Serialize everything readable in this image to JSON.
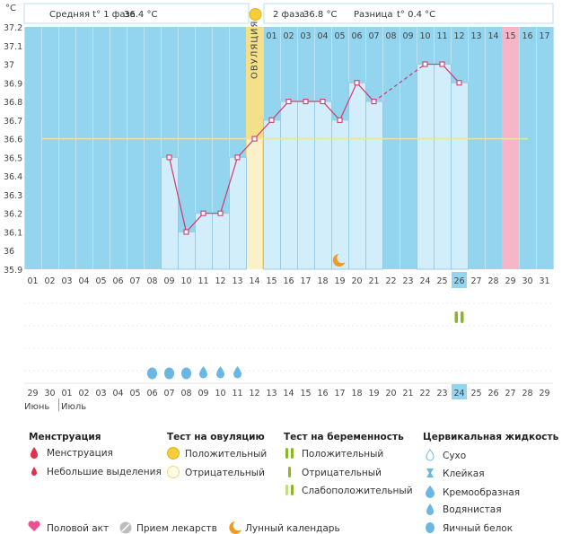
{
  "chart_data": {
    "type": "line",
    "unit": "°C",
    "y_ticks": [
      "37.2",
      "37.1",
      "37",
      "36.9",
      "36.8",
      "36.7",
      "36.6",
      "36.5",
      "36.4",
      "36.3",
      "36.2",
      "36.1",
      "36",
      "35.9"
    ],
    "ylim": [
      35.9,
      37.2
    ],
    "phase1_label": "Средняя t° 1 фаза",
    "phase1_value": "36.4 °C",
    "phase2_label": "2 фаза",
    "phase2_value": "36.8 °C",
    "diff_label": "Разница",
    "diff_value": "t° 0.4 °C",
    "ovulation_label": "ОВУЛЯЦИЯ",
    "ovulation_index": 13,
    "cycle_day_labels": [
      "01",
      "02",
      "03",
      "04",
      "05",
      "06",
      "07",
      "08",
      "09",
      "10",
      "11",
      "12",
      "13",
      "14",
      "15",
      "16",
      "17",
      "18",
      "19",
      "20",
      "21",
      "22",
      "23",
      "24",
      "25",
      "26",
      "27",
      "28",
      "29",
      "30",
      "31"
    ],
    "post_ovulation_day_labels": [
      "01",
      "02",
      "03",
      "04",
      "05",
      "06",
      "07",
      "08",
      "09",
      "10",
      "11",
      "12",
      "13",
      "14",
      "15",
      "16",
      "17"
    ],
    "coverline": 36.6,
    "temperatures": [
      null,
      null,
      null,
      null,
      null,
      null,
      null,
      null,
      36.5,
      36.1,
      36.2,
      36.2,
      36.5,
      36.6,
      36.7,
      36.8,
      36.8,
      36.8,
      36.7,
      36.9,
      36.8,
      null,
      null,
      37.0,
      37.0,
      36.9,
      null,
      null,
      null,
      null,
      null
    ],
    "interpolated_segments": [
      [
        20,
        23
      ]
    ],
    "highlight_cycle_day_index": 25,
    "pink_day_index": 28,
    "calendar_dates": [
      "29",
      "30",
      "01",
      "02",
      "03",
      "04",
      "05",
      "06",
      "07",
      "08",
      "09",
      "10",
      "11",
      "12",
      "13",
      "14",
      "15",
      "16",
      "17",
      "18",
      "19",
      "20",
      "21",
      "22",
      "23",
      "24",
      "25",
      "26",
      "27",
      "28",
      "29"
    ],
    "red_date_indices": [
      3,
      4,
      9,
      10,
      16,
      17,
      23
    ],
    "highlight_date_index": 25,
    "month_labels": [
      "Июнь",
      "Июль"
    ],
    "moon_index": 18,
    "fluid_markers": [
      {
        "index": 7,
        "kind": "egg-white"
      },
      {
        "index": 8,
        "kind": "egg-white"
      },
      {
        "index": 9,
        "kind": "egg-white"
      },
      {
        "index": 10,
        "kind": "watery"
      },
      {
        "index": 11,
        "kind": "watery"
      },
      {
        "index": 12,
        "kind": "watery"
      }
    ],
    "pregnancy_test_index": 25
  },
  "legend": {
    "menstruation": {
      "title": "Менструация",
      "items": [
        {
          "label": "Менструация",
          "icon": "large-drop-icon"
        },
        {
          "label": "Небольшие выделения",
          "icon": "small-drop-icon"
        }
      ]
    },
    "ovulation_test": {
      "title": "Тест на овуляцию",
      "items": [
        {
          "label": "Положительный",
          "icon": "filled-circle-icon"
        },
        {
          "label": "Отрицательный",
          "icon": "empty-circle-icon"
        }
      ]
    },
    "pregnancy_test": {
      "title": "Тест на беременность",
      "items": [
        {
          "label": "Положительный",
          "icon": "two-lines-icon"
        },
        {
          "label": "Отрицательный",
          "icon": "one-line-icon"
        },
        {
          "label": "Слабоположительный",
          "icon": "faint-lines-icon"
        }
      ]
    },
    "cervical_fluid": {
      "title": "Цервикальная жидкость",
      "items": [
        {
          "label": "Сухо",
          "icon": "dry-drop-icon"
        },
        {
          "label": "Клейкая",
          "icon": "sticky-icon"
        },
        {
          "label": "Кремообразная",
          "icon": "creamy-drop-icon"
        },
        {
          "label": "Водянистая",
          "icon": "watery-drop-icon"
        },
        {
          "label": "Яичный белок",
          "icon": "egg-white-drop-icon"
        }
      ]
    },
    "bottom": [
      {
        "label": "Половой акт",
        "icon": "heart-icon"
      },
      {
        "label": "Прием лекарств",
        "icon": "pill-icon"
      },
      {
        "label": "Лунный календарь",
        "icon": "moon-icon"
      }
    ]
  },
  "colors": {
    "sky": "#93d4ee",
    "bar": "#d3eefb",
    "bar_border": "#9bcbe4",
    "line": "#d23a6d",
    "ovulation_band": "#f5e08a",
    "pink": "#f6b6c8",
    "highlight": "#93d4ee",
    "coverline": "#e8e6a0",
    "red_date": "#d0103a",
    "drop": "#6bb7e4",
    "green": "#8ab628",
    "moon": "#f29a1f"
  }
}
